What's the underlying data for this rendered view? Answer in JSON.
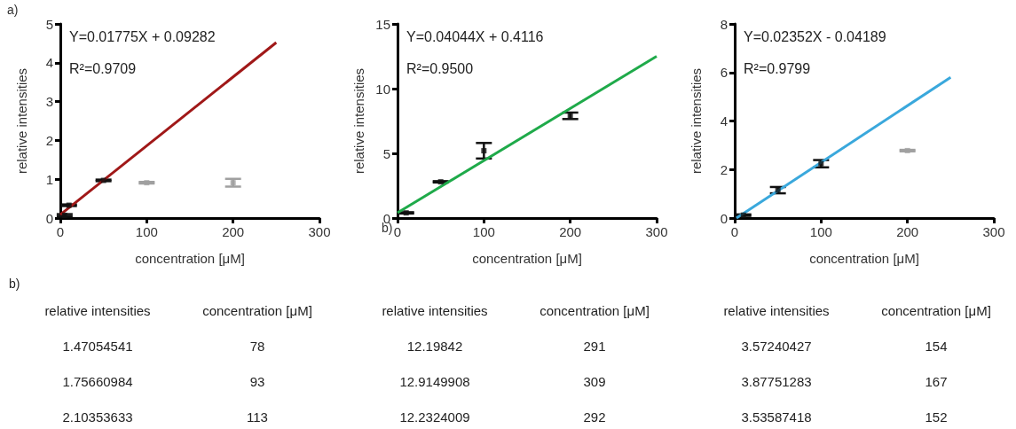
{
  "chart_data": [
    {
      "type": "scatter",
      "title": "a)",
      "xlabel": "concentration [μM]",
      "ylabel": "relative intensities",
      "xlim": [
        0,
        300
      ],
      "xticks": [
        0,
        100,
        200,
        300
      ],
      "ylim": [
        0,
        5
      ],
      "yticks": [
        0,
        1,
        2,
        3,
        4,
        5
      ],
      "grid": false,
      "annotations": [
        "Y=0.01775X + 0.09282",
        "R²=0.9709"
      ],
      "series": [
        {
          "color": "#111111",
          "marker": "square",
          "x": [
            5,
            10,
            50
          ],
          "values": [
            0.07,
            0.33,
            0.97
          ],
          "errors": [
            0.03,
            0.02,
            0.02
          ]
        },
        {
          "color": "#a0a0a0",
          "marker": "square",
          "x": [
            100,
            200
          ],
          "values": [
            0.91,
            0.91
          ],
          "errors": [
            0.02,
            0.1
          ]
        },
        {
          "type": "line",
          "color": "#a01818",
          "x": [
            0,
            250
          ],
          "values": [
            0.09,
            4.52
          ]
        }
      ]
    },
    {
      "type": "scatter",
      "xlabel": "concentration [μM]",
      "ylabel": "relative intensities",
      "xlim": [
        0,
        300
      ],
      "xticks": [
        0,
        100,
        200,
        300
      ],
      "ylim": [
        0,
        15
      ],
      "yticks": [
        0,
        5,
        10,
        15
      ],
      "grid": false,
      "annotations": [
        "Y=0.04044X + 0.4116",
        "R²=0.9500",
        "b)"
      ],
      "series": [
        {
          "color": "#111111",
          "marker": "square",
          "x": [
            10,
            50,
            100,
            200
          ],
          "values": [
            0.4,
            2.8,
            5.2,
            7.9
          ],
          "errors": [
            0.05,
            0.05,
            0.6,
            0.25
          ]
        },
        {
          "type": "line",
          "color": "#1faa4a",
          "x": [
            0,
            300
          ],
          "values": [
            0.41,
            12.5
          ]
        }
      ]
    },
    {
      "type": "scatter",
      "xlabel": "concentration [μM]",
      "ylabel": "relative intensities",
      "xlim": [
        0,
        300
      ],
      "xticks": [
        0,
        100,
        200,
        300
      ],
      "ylim": [
        0,
        8
      ],
      "yticks": [
        0,
        2,
        4,
        6,
        8
      ],
      "grid": false,
      "annotations": [
        "Y=0.02352X - 0.04189",
        "R²=0.9799"
      ],
      "series": [
        {
          "color": "#111111",
          "marker": "square",
          "x": [
            10,
            50,
            100
          ],
          "values": [
            0.12,
            1.15,
            2.24
          ],
          "errors": [
            0.03,
            0.13,
            0.15
          ]
        },
        {
          "color": "#a0a0a0",
          "marker": "square",
          "x": [
            200
          ],
          "values": [
            2.78
          ],
          "errors": [
            0.03
          ]
        },
        {
          "type": "line",
          "color": "#3aa8dc",
          "x": [
            2,
            250
          ],
          "values": [
            0,
            5.8
          ]
        }
      ]
    },
    {
      "type": "other",
      "title": "b)",
      "annotations": [
        "relative intensities",
        "concentration [μM]",
        "1.47054541",
        "78",
        "1.75660984",
        "93",
        "2.10353633",
        "113"
      ]
    },
    {
      "type": "other",
      "annotations": [
        "relative intensities",
        "concentration [μM]",
        "12.19842",
        "291",
        "12.9149908",
        "309",
        "12.2324009",
        "292"
      ]
    },
    {
      "type": "other",
      "annotations": [
        "relative intensities",
        "concentration [μM]",
        "3.57240427",
        "154",
        "3.87751283",
        "167",
        "3.53587418",
        "152"
      ]
    }
  ]
}
